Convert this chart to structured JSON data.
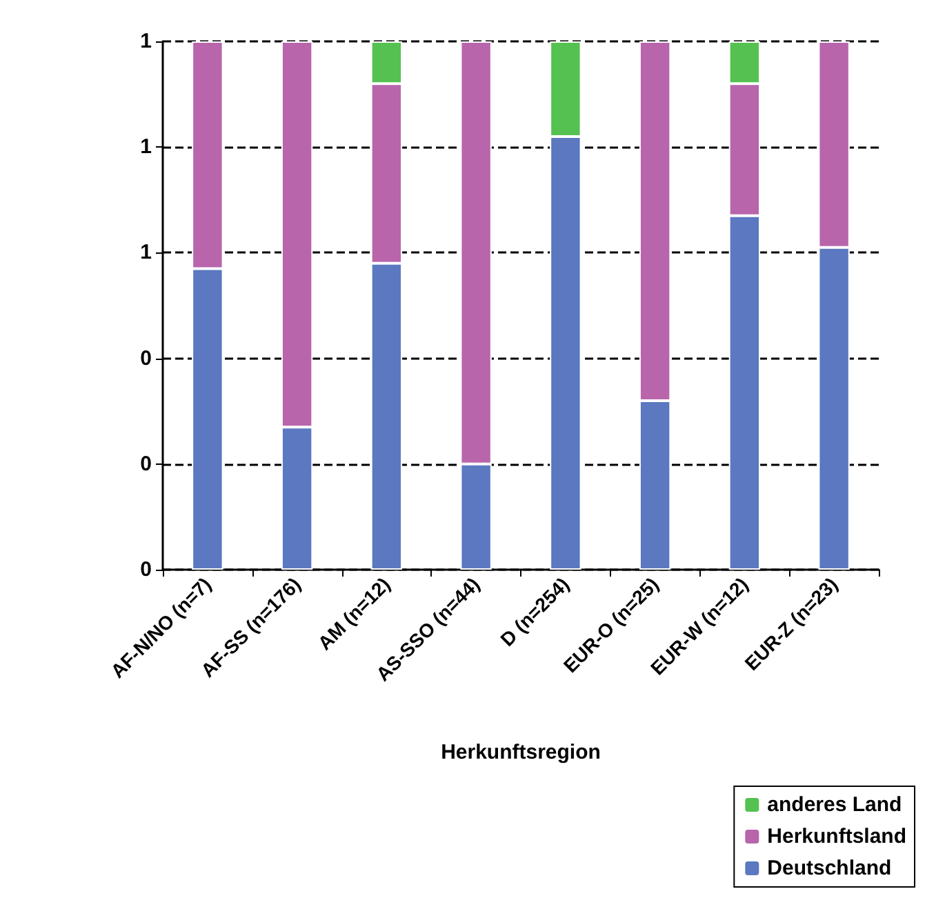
{
  "chart_data": {
    "type": "bar",
    "stacked": true,
    "xlabel": "Herkunftsregion",
    "categories": [
      "AF-N/NO (n=7)",
      "AF-SS (n=176)",
      "AM (n=12)",
      "AS-SSO (n=44)",
      "D (n=254)",
      "EUR-O (n=25)",
      "EUR-W (n=12)",
      "EUR-Z (n=23)"
    ],
    "series": [
      {
        "name": "Deutschland",
        "color": "#5b78c0",
        "values": [
          0.57,
          0.27,
          0.58,
          0.2,
          0.82,
          0.32,
          0.67,
          0.61
        ]
      },
      {
        "name": "Herkunftsland",
        "color": "#b865ac",
        "values": [
          0.43,
          0.73,
          0.34,
          0.8,
          null,
          0.68,
          0.25,
          0.39
        ]
      },
      {
        "name": "anderes Land",
        "color": "#55c150",
        "values": [
          null,
          null,
          0.08,
          null,
          0.18,
          null,
          0.08,
          null
        ]
      }
    ],
    "ylim": [
      0,
      1
    ],
    "yticks": [
      0,
      {
        "value": 0.2,
        "label": "0"
      },
      {
        "value": 0.4,
        "label": "0"
      },
      {
        "value": 0.6,
        "label": "1"
      },
      {
        "value": 0.8,
        "label": "1"
      },
      1
    ],
    "grid": "y",
    "line_style": "dashed",
    "legend": "bottom right"
  }
}
